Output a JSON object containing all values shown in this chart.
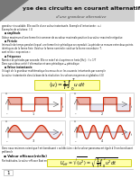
{
  "background_color": "#ffffff",
  "title_text": "yse des circuits en courant alternatif",
  "title_bg": "#d0d0d0",
  "title_triangle_color": "#888888",
  "subtitle": "d’une grandeur alternative",
  "red_color": "#cc2200",
  "yellow_fill": "#ffffaa",
  "yellow_edge": "#cccc00",
  "text_color": "#111111",
  "body_lines": [
    "grandeur sinusoïdale. Elle oscille d’une valeur instantanée. Exemple d’instantanée : u, i",
    "Exemples de solutions: I, U",
    "● amplitude",
    "Valeur maximum d’une forme finie amener de sa valeur maximale positive à sa valeur maximale négative.",
    "● Période",
    "Intervalle de temps pendant lequel une forme finie périodique se reproduit. La période se mesure entre deux points",
    "identiques de la forme finie. Void sur la forme nominale: void sur la forme secondaire: T.",
    "sont reliés « expression »",
    "● Fréquence",
    "Nombre de périodes par seconde. Elle se note f et s’exprime en hertz [Hz] :  f = 1/T",
    "Donc aussi deux unité: f alternative et sans périodique → périodique",
    "● Valeur instantanée",
    "Il s’agit de la grandeur mathématique les mesurés on les courants instantanés par exemple",
    "La valeur instantanée dans la base de la résolution: les valeurs moyennes et globales: f,U)"
  ],
  "formula1": "$\\langle u \\rangle = \\dfrac{1}{T} \\int_0^T u\\,dt$",
  "formula2": "$U_{eff} = \\sqrt{\\langle u^2 \\rangle} = \\sqrt{\\dfrac{1}{T}\\int_0^T u^2\\,dt}$",
  "bottom_lines": [
    "Donc nous resterons soient que f est bondissant « sol décision » de la valeur panorama est égale à 0 son bondissant",
    "profiterole"
  ],
  "section2": "● Valeur efficace(réelle)",
  "section2_line": "Par habitudes, la valeur efficace East en la mesure ave",
  "page_num": "1"
}
